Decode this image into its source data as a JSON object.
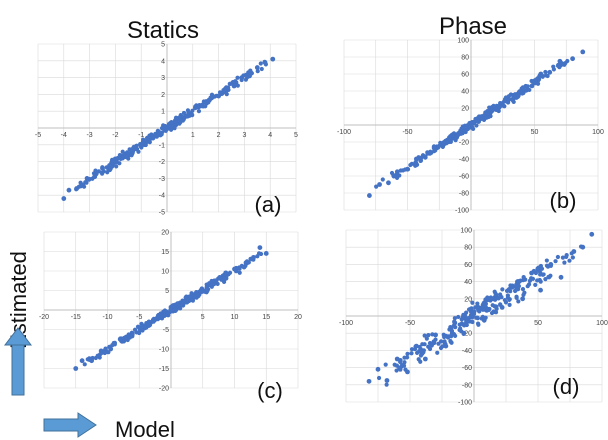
{
  "titles": {
    "left": "Statics",
    "right": "Phase"
  },
  "labels": {
    "y_word": "Estimated",
    "x_word": "Model"
  },
  "colors": {
    "points": "#4472C4",
    "arrow": "#5B9BD5",
    "arrow_edge": "#41719C",
    "grid": "#d9d9d9",
    "axis": "#bfbfbf"
  },
  "chart_data": [
    {
      "type": "scatter",
      "panel_label": "(a)",
      "title": "",
      "xlabel": "",
      "ylabel": "",
      "xlim": [
        -5,
        5
      ],
      "ylim": [
        -5,
        5
      ],
      "grid": true,
      "x_ticks": [
        "-5",
        "-4",
        "-3",
        "-2",
        "-1",
        "",
        "1",
        "2",
        "3",
        "4",
        "5"
      ],
      "y_ticks": [
        "-5",
        "-4",
        "-3",
        "-2",
        "-1",
        "",
        "1",
        "2",
        "3",
        "4",
        "5"
      ],
      "trend": {
        "slope": 1.0,
        "from": -3.8,
        "to": 4.1
      },
      "series": [
        {
          "x": [
            -4.0,
            -3.8,
            -3.5,
            -3.1,
            -2.8,
            -2.5,
            -2.2,
            -1.9,
            -1.6,
            -1.3,
            -1.0,
            -0.7,
            -0.4,
            -0.1,
            0.2,
            0.5,
            0.8,
            1.1,
            1.4,
            1.7,
            2.0,
            2.3,
            2.6,
            2.9,
            3.2,
            3.5,
            3.8,
            4.1
          ],
          "y": [
            -4.2,
            -3.7,
            -3.6,
            -3.0,
            -2.9,
            -2.4,
            -2.3,
            -1.8,
            -1.7,
            -1.2,
            -1.1,
            -0.6,
            -0.5,
            0.0,
            0.1,
            0.6,
            0.7,
            1.2,
            1.3,
            1.8,
            1.9,
            2.4,
            2.5,
            3.0,
            3.1,
            3.6,
            3.9,
            4.1
          ]
        }
      ]
    },
    {
      "type": "scatter",
      "panel_label": "(b)",
      "title": "",
      "xlabel": "",
      "ylabel": "",
      "xlim": [
        -100,
        100
      ],
      "ylim": [
        -100,
        100
      ],
      "grid": true,
      "x_ticks": [
        "-100",
        "",
        "-50",
        "",
        "",
        "",
        "50",
        "",
        "100"
      ],
      "y_ticks": [
        "-100",
        "-80",
        "-60",
        "-40",
        "-20",
        "",
        "20",
        "40",
        "60",
        "80",
        "100"
      ],
      "trend": {
        "slope": 1.0,
        "from": -78,
        "to": 88
      },
      "series": [
        {
          "x": [
            -80,
            -72,
            -65,
            -58,
            -50,
            -43,
            -36,
            -29,
            -22,
            -15,
            -8,
            -1,
            6,
            13,
            20,
            27,
            34,
            41,
            48,
            55,
            62,
            70,
            80,
            88
          ],
          "y": [
            -83,
            -70,
            -68,
            -55,
            -52,
            -40,
            -38,
            -26,
            -24,
            -12,
            -10,
            2,
            4,
            16,
            18,
            30,
            32,
            44,
            46,
            60,
            62,
            75,
            78,
            86
          ]
        }
      ]
    },
    {
      "type": "scatter",
      "panel_label": "(c)",
      "title": "",
      "xlabel": "",
      "ylabel": "",
      "xlim": [
        -20,
        20
      ],
      "ylim": [
        -20,
        20
      ],
      "grid": true,
      "x_ticks": [
        "-20",
        "-15",
        "-10",
        "-5",
        "",
        "5",
        "10",
        "15",
        "20"
      ],
      "y_ticks": [
        "-20",
        "-15",
        "-10",
        "-5",
        "",
        "5",
        "10",
        "15",
        "20"
      ],
      "trend": {
        "slope": 1.0,
        "from": -15,
        "to": 15
      },
      "series": [
        {
          "x": [
            -15,
            -14,
            -12.5,
            -11,
            -9.5,
            -8,
            -6.5,
            -5,
            -3.5,
            -2,
            -0.5,
            1,
            2.5,
            4,
            5.5,
            7,
            8.5,
            10,
            11.5,
            13,
            14,
            15
          ],
          "y": [
            -15,
            -13,
            -13,
            -10.5,
            -10,
            -7.5,
            -7,
            -4.5,
            -4,
            -1.5,
            -1,
            1.5,
            2,
            4.5,
            5,
            7.5,
            8,
            10.5,
            11,
            13.5,
            16,
            14.5
          ]
        }
      ]
    },
    {
      "type": "scatter",
      "panel_label": "(d)",
      "title": "",
      "xlabel": "",
      "ylabel": "",
      "xlim": [
        -100,
        100
      ],
      "ylim": [
        -100,
        100
      ],
      "grid": true,
      "x_ticks": [
        "-100",
        "",
        "-50",
        "",
        "",
        "",
        "50",
        "",
        "100"
      ],
      "y_ticks": [
        "-100",
        "-80",
        "-60",
        "-40",
        "-20",
        "",
        "20",
        "40",
        "60",
        "80",
        "100"
      ],
      "trend": {
        "slope": 0.95,
        "from": -80,
        "to": 92
      },
      "series": [
        {
          "x": [
            -82,
            -75,
            -68,
            -60,
            -52,
            -45,
            -38,
            -30,
            -22,
            -15,
            -8,
            0,
            8,
            15,
            22,
            30,
            38,
            45,
            52,
            60,
            68,
            78,
            85,
            92
          ],
          "y": [
            -76,
            -62,
            -75,
            -50,
            -65,
            -35,
            -50,
            -22,
            -35,
            -8,
            -20,
            5,
            -5,
            20,
            10,
            35,
            20,
            50,
            30,
            60,
            45,
            75,
            80,
            95
          ]
        }
      ]
    }
  ]
}
